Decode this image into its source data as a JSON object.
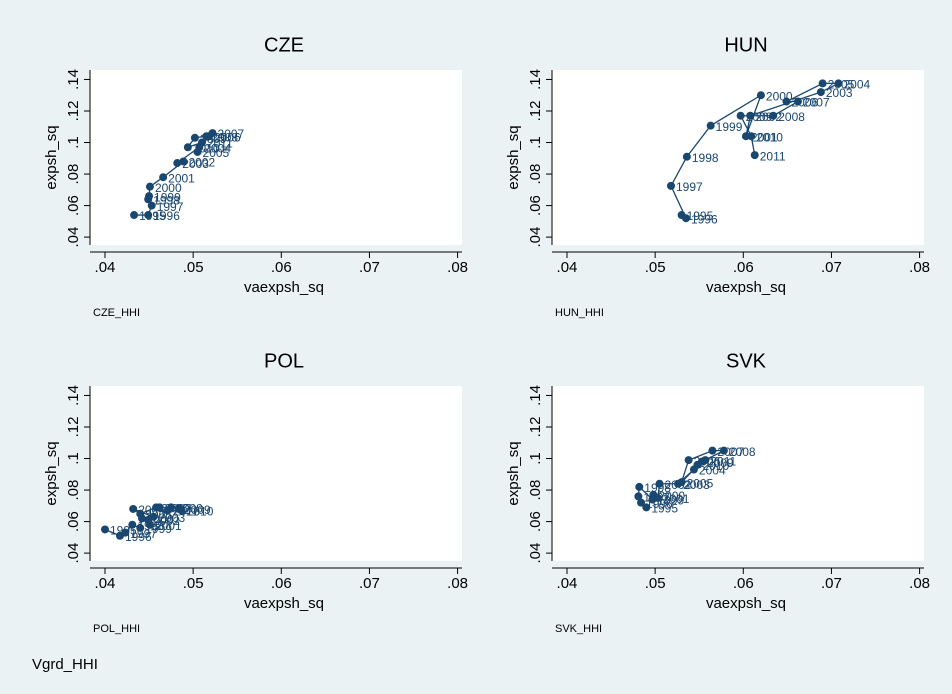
{
  "note": "Vgrd_HHI",
  "chart_data": [
    {
      "type": "scatter",
      "title": "CZE",
      "subtitle": "CZE_HHI",
      "xlabel": "vaexpsh_sq",
      "ylabel": "expsh_sq",
      "color": "#1a476f",
      "xlim": [
        0.0383,
        0.0805
      ],
      "ylim": [
        0.035,
        0.146
      ],
      "xticks": [
        {
          "value": 0.04,
          "label": ".04"
        },
        {
          "value": 0.05,
          "label": ".05"
        },
        {
          "value": 0.06,
          "label": ".06"
        },
        {
          "value": 0.07,
          "label": ".07"
        },
        {
          "value": 0.08,
          "label": ".08"
        }
      ],
      "yticks": [
        {
          "value": 0.04,
          "label": ".04"
        },
        {
          "value": 0.06,
          "label": ".06"
        },
        {
          "value": 0.08,
          "label": ".08"
        },
        {
          "value": 0.1,
          "label": ".1"
        },
        {
          "value": 0.12,
          "label": ".12"
        },
        {
          "value": 0.14,
          "label": ".14"
        }
      ],
      "x": [
        0.0433,
        0.0449,
        0.0453,
        0.0449,
        0.045,
        0.0451,
        0.0466,
        0.0489,
        0.0482,
        0.0507,
        0.0505,
        0.0518,
        0.0522,
        0.0515,
        0.0502,
        0.0494,
        0.051
      ],
      "y": [
        0.054,
        0.054,
        0.06,
        0.064,
        0.066,
        0.072,
        0.078,
        0.088,
        0.087,
        0.097,
        0.094,
        0.104,
        0.106,
        0.104,
        0.103,
        0.097,
        0.1
      ],
      "labels": [
        "1995",
        "1996",
        "1997",
        "1998",
        "1999",
        "2000",
        "2001",
        "2002",
        "2003",
        "2004",
        "2005",
        "2006",
        "2007",
        "2008",
        "2009",
        "2010",
        "2011"
      ]
    },
    {
      "type": "scatter",
      "title": "HUN",
      "subtitle": "HUN_HHI",
      "xlabel": "vaexpsh_sq",
      "ylabel": "expsh_sq",
      "color": "#1a476f",
      "xlim": [
        0.0383,
        0.0805
      ],
      "ylim": [
        0.035,
        0.146
      ],
      "xticks": [
        {
          "value": 0.04,
          "label": ".04"
        },
        {
          "value": 0.05,
          "label": ".05"
        },
        {
          "value": 0.06,
          "label": ".06"
        },
        {
          "value": 0.07,
          "label": ".07"
        },
        {
          "value": 0.08,
          "label": ".08"
        }
      ],
      "yticks": [
        {
          "value": 0.04,
          "label": ".04"
        },
        {
          "value": 0.06,
          "label": ".06"
        },
        {
          "value": 0.08,
          "label": ".08"
        },
        {
          "value": 0.1,
          "label": ".1"
        },
        {
          "value": 0.12,
          "label": ".12"
        },
        {
          "value": 0.14,
          "label": ".14"
        }
      ],
      "x": [
        0.053,
        0.0535,
        0.0518,
        0.0536,
        0.0563,
        0.062,
        0.0603,
        0.0608,
        0.0688,
        0.0708,
        0.069,
        0.0649,
        0.0662,
        0.0634,
        0.0597,
        0.0609,
        0.0613
      ],
      "y": [
        0.054,
        0.052,
        0.0725,
        0.091,
        0.1107,
        0.13,
        0.104,
        0.117,
        0.132,
        0.1375,
        0.1375,
        0.126,
        0.126,
        0.117,
        0.117,
        0.104,
        0.092
      ],
      "labels": [
        "1995",
        "1996",
        "1997",
        "1998",
        "1999",
        "2000",
        "2001",
        "2002",
        "2003",
        "2004",
        "2005",
        "2006",
        "2007",
        "2008",
        "2009",
        "2010",
        "2011"
      ]
    },
    {
      "type": "scatter",
      "title": "POL",
      "subtitle": "POL_HHI",
      "xlabel": "vaexpsh_sq",
      "ylabel": "expsh_sq",
      "color": "#1a476f",
      "xlim": [
        0.0383,
        0.0805
      ],
      "ylim": [
        0.035,
        0.146
      ],
      "xticks": [
        {
          "value": 0.04,
          "label": ".04"
        },
        {
          "value": 0.05,
          "label": ".05"
        },
        {
          "value": 0.06,
          "label": ".06"
        },
        {
          "value": 0.07,
          "label": ".07"
        },
        {
          "value": 0.08,
          "label": ".08"
        }
      ],
      "yticks": [
        {
          "value": 0.04,
          "label": ".04"
        },
        {
          "value": 0.06,
          "label": ".06"
        },
        {
          "value": 0.08,
          "label": ".08"
        },
        {
          "value": 0.1,
          "label": ".1"
        },
        {
          "value": 0.12,
          "label": ".12"
        },
        {
          "value": 0.14,
          "label": ".14"
        }
      ],
      "x": [
        0.04,
        0.0417,
        0.0423,
        0.0431,
        0.044,
        0.0442,
        0.0451,
        0.0449,
        0.0455,
        0.0432,
        0.044,
        0.0458,
        0.0462,
        0.0475,
        0.0484,
        0.0487,
        0.0471
      ],
      "y": [
        0.055,
        0.051,
        0.053,
        0.058,
        0.056,
        0.062,
        0.058,
        0.061,
        0.063,
        0.068,
        0.065,
        0.069,
        0.069,
        0.069,
        0.068,
        0.067,
        0.067
      ],
      "labels": [
        "1995",
        "1996",
        "1997",
        "1998",
        "1999",
        "2000",
        "2001",
        "2002",
        "2003",
        "2004",
        "2005",
        "2006",
        "2007",
        "2008",
        "2009",
        "2010",
        "2011"
      ]
    },
    {
      "type": "scatter",
      "title": "SVK",
      "subtitle": "SVK_HHI",
      "xlabel": "vaexpsh_sq",
      "ylabel": "expsh_sq",
      "color": "#1a476f",
      "xlim": [
        0.0383,
        0.0805
      ],
      "ylim": [
        0.035,
        0.146
      ],
      "xticks": [
        {
          "value": 0.04,
          "label": ".04"
        },
        {
          "value": 0.05,
          "label": ".05"
        },
        {
          "value": 0.06,
          "label": ".06"
        },
        {
          "value": 0.07,
          "label": ".07"
        },
        {
          "value": 0.08,
          "label": ".08"
        }
      ],
      "yticks": [
        {
          "value": 0.04,
          "label": ".04"
        },
        {
          "value": 0.06,
          "label": ".06"
        },
        {
          "value": 0.08,
          "label": ".08"
        },
        {
          "value": 0.1,
          "label": ".1"
        },
        {
          "value": 0.12,
          "label": ".12"
        },
        {
          "value": 0.14,
          "label": ".14"
        }
      ],
      "x": [
        0.049,
        0.0484,
        0.0481,
        0.0482,
        0.0497,
        0.0498,
        0.0503,
        0.0505,
        0.0526,
        0.0544,
        0.053,
        0.0538,
        0.0565,
        0.0578,
        0.0553,
        0.0548,
        0.0557
      ],
      "y": [
        0.069,
        0.072,
        0.076,
        0.082,
        0.074,
        0.077,
        0.075,
        0.084,
        0.084,
        0.093,
        0.085,
        0.099,
        0.105,
        0.105,
        0.098,
        0.096,
        0.099
      ],
      "labels": [
        "1995",
        "1996",
        "1997",
        "1998",
        "1999",
        "2000",
        "2001",
        "2002",
        "2003",
        "2004",
        "2005",
        "2006",
        "2007",
        "2008",
        "2009",
        "2010",
        "2011"
      ]
    }
  ]
}
